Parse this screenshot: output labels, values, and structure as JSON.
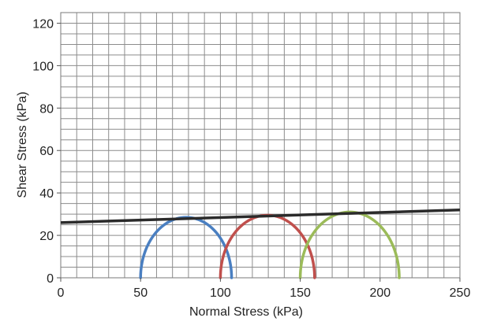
{
  "chart_data": {
    "type": "line",
    "xlabel": "Normal  Stress (kPa)",
    "ylabel": "Shear Stress (kPa)",
    "xlim": [
      0,
      250
    ],
    "ylim": [
      0,
      125
    ],
    "x_ticks": [
      0,
      50,
      100,
      150,
      200,
      250
    ],
    "y_ticks": [
      0,
      20,
      40,
      60,
      80,
      100,
      120
    ],
    "x_minor_step": 10,
    "y_minor_step": 5,
    "grid": true,
    "circles": [
      {
        "sigma3": 50,
        "sigma1": 107,
        "color": "#4a7fc1"
      },
      {
        "sigma3": 100,
        "sigma1": 159,
        "color": "#c0504d"
      },
      {
        "sigma3": 150,
        "sigma1": 212,
        "color": "#9bbb59"
      }
    ],
    "envelope": {
      "x": [
        0,
        250
      ],
      "y": [
        26,
        32
      ],
      "color": "#2b2b2b"
    }
  }
}
